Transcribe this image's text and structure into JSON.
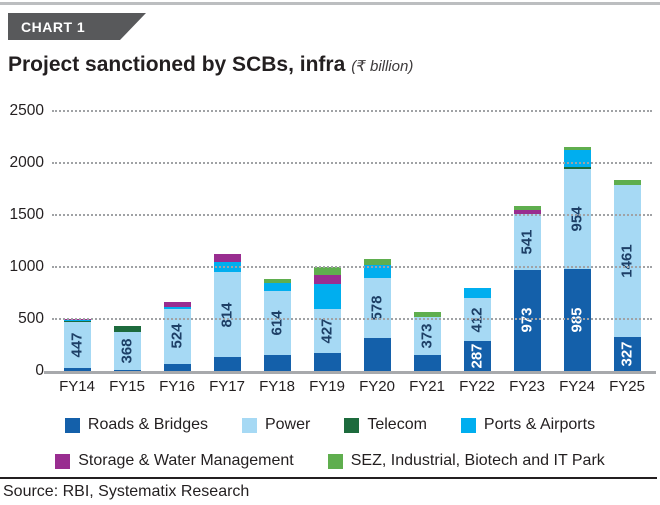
{
  "page": {
    "badge": "CHART 1",
    "title": "Project sanctioned by SCBs, infra",
    "unit": "(₹ billion)",
    "source": "Source: RBI, Systematix Research"
  },
  "colors": {
    "badge_bg": "#58595b",
    "value_label_navy": "#1d3f66",
    "value_label_white": "#ffffff",
    "gridline": "#a0a2a5",
    "axis_line": "#a7a9ac",
    "text": "#231f20"
  },
  "chart_data": {
    "type": "bar",
    "stacked": true,
    "title": "Project sanctioned by SCBs, infra",
    "unit": "₹ billion",
    "ylim": [
      0,
      2500
    ],
    "yticks": [
      0,
      500,
      1000,
      1500,
      2000,
      2500
    ],
    "grid": "dotted horizontal",
    "legend_position": "bottom",
    "categories": [
      "FY14",
      "FY15",
      "FY16",
      "FY17",
      "FY18",
      "FY19",
      "FY20",
      "FY21",
      "FY22",
      "FY23",
      "FY24",
      "FY25"
    ],
    "series": [
      {
        "name": "Roads & Bridges",
        "color": "#1460aa",
        "values": [
          25,
          10,
          70,
          135,
          155,
          170,
          320,
          150,
          287,
          973,
          985,
          327
        ]
      },
      {
        "name": "Power",
        "color": "#a6d9f4",
        "values": [
          447,
          368,
          524,
          814,
          614,
          427,
          578,
          373,
          412,
          541,
          954,
          1461
        ]
      },
      {
        "name": "Telecom",
        "color": "#1d6b3d",
        "values": [
          5,
          55,
          0,
          0,
          0,
          0,
          0,
          0,
          0,
          0,
          25,
          0
        ]
      },
      {
        "name": "Ports & Airports",
        "color": "#00aeef",
        "values": [
          12,
          0,
          25,
          100,
          75,
          240,
          125,
          0,
          95,
          0,
          165,
          0
        ]
      },
      {
        "name": "Storage & Water Management",
        "color": "#992d90",
        "values": [
          12,
          0,
          45,
          80,
          0,
          85,
          0,
          0,
          0,
          35,
          0,
          0
        ]
      },
      {
        "name": "SEZ, Industrial, Biotech and IT Park",
        "color": "#5fae4e",
        "values": [
          0,
          0,
          0,
          0,
          40,
          80,
          55,
          45,
          0,
          35,
          30,
          50
        ]
      }
    ],
    "value_labels": [
      {
        "category": "FY14",
        "series": "Power",
        "text": "447",
        "color": "navy"
      },
      {
        "category": "FY15",
        "series": "Power",
        "text": "368",
        "color": "navy"
      },
      {
        "category": "FY16",
        "series": "Power",
        "text": "524",
        "color": "navy"
      },
      {
        "category": "FY17",
        "series": "Power",
        "text": "814",
        "color": "navy"
      },
      {
        "category": "FY18",
        "series": "Power",
        "text": "614",
        "color": "navy"
      },
      {
        "category": "FY19",
        "series": "Power",
        "text": "427",
        "color": "navy"
      },
      {
        "category": "FY20",
        "series": "Power",
        "text": "578",
        "color": "navy"
      },
      {
        "category": "FY21",
        "series": "Power",
        "text": "373",
        "color": "navy"
      },
      {
        "category": "FY22",
        "series": "Roads & Bridges",
        "text": "287",
        "color": "white"
      },
      {
        "category": "FY22",
        "series": "Power",
        "text": "412",
        "color": "navy"
      },
      {
        "category": "FY23",
        "series": "Roads & Bridges",
        "text": "973",
        "color": "white"
      },
      {
        "category": "FY23",
        "series": "Power",
        "text": "541",
        "color": "navy"
      },
      {
        "category": "FY24",
        "series": "Roads & Bridges",
        "text": "985",
        "color": "white"
      },
      {
        "category": "FY24",
        "series": "Power",
        "text": "954",
        "color": "navy"
      },
      {
        "category": "FY25",
        "series": "Roads & Bridges",
        "text": "327",
        "color": "white"
      },
      {
        "category": "FY25",
        "series": "Power",
        "text": "1461",
        "color": "navy"
      }
    ]
  }
}
